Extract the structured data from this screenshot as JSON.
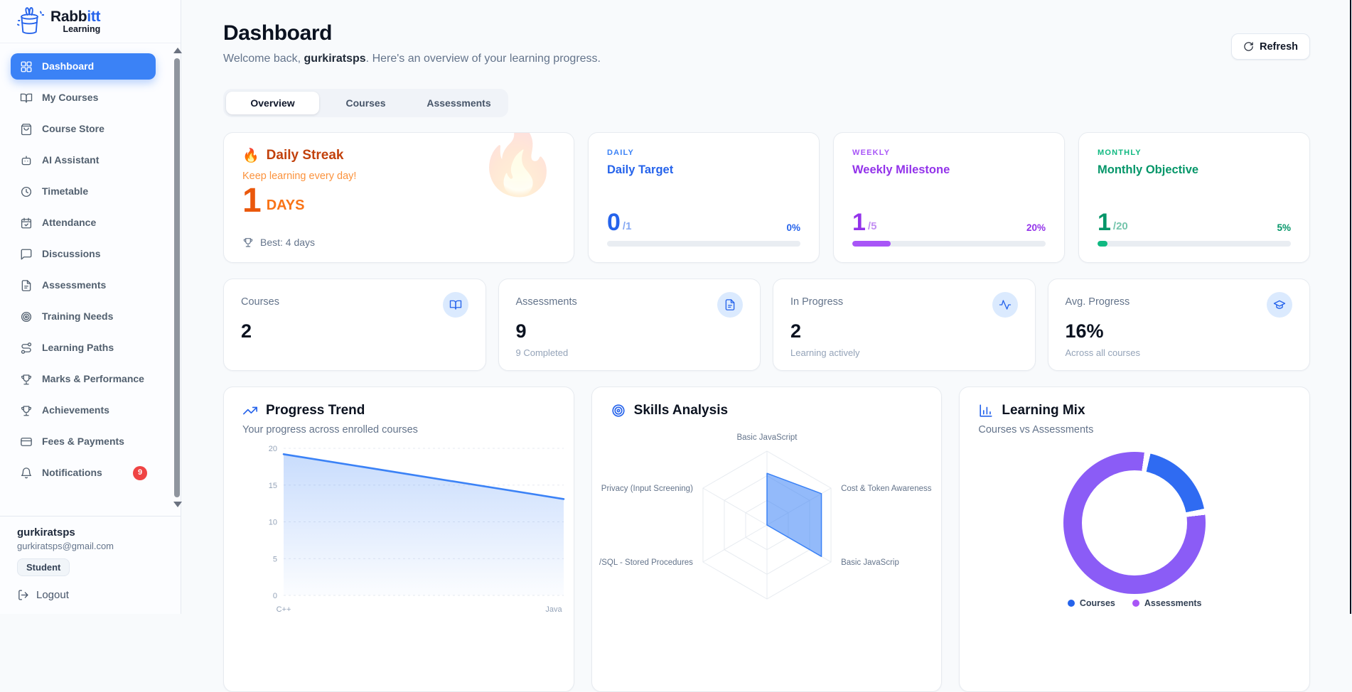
{
  "brand": {
    "name_primary": "Rabb",
    "name_accent": "itt",
    "subtitle": "Learning"
  },
  "sidebar": {
    "items": [
      {
        "label": "Dashboard",
        "icon": "grid",
        "active": true
      },
      {
        "label": "My Courses",
        "icon": "book-open",
        "active": false
      },
      {
        "label": "Course Store",
        "icon": "shopping-bag",
        "active": false
      },
      {
        "label": "AI Assistant",
        "icon": "bot",
        "active": false
      },
      {
        "label": "Timetable",
        "icon": "clock",
        "active": false
      },
      {
        "label": "Attendance",
        "icon": "calendar-check",
        "active": false
      },
      {
        "label": "Discussions",
        "icon": "message-square",
        "active": false
      },
      {
        "label": "Assessments",
        "icon": "file-text",
        "active": false
      },
      {
        "label": "Training Needs",
        "icon": "target",
        "active": false
      },
      {
        "label": "Learning Paths",
        "icon": "route",
        "active": false
      },
      {
        "label": "Marks & Performance",
        "icon": "trophy",
        "active": false
      },
      {
        "label": "Achievements",
        "icon": "trophy",
        "active": false
      },
      {
        "label": "Fees & Payments",
        "icon": "credit-card",
        "active": false
      },
      {
        "label": "Notifications",
        "icon": "bell",
        "active": false,
        "badge": "9"
      }
    ],
    "user": {
      "name": "gurkiratsps",
      "email": "gurkiratsps@gmail.com",
      "role_badge": "Student",
      "logout_label": "Logout"
    }
  },
  "header": {
    "title": "Dashboard",
    "welcome_prefix": "Welcome back, ",
    "welcome_user": "gurkiratsps",
    "welcome_suffix": ". Here's an overview of your learning progress.",
    "refresh_label": "Refresh"
  },
  "tabs": [
    {
      "label": "Overview",
      "active": true
    },
    {
      "label": "Courses",
      "active": false
    },
    {
      "label": "Assessments",
      "active": false
    }
  ],
  "streak": {
    "icon": "🔥",
    "title": "Daily Streak",
    "subtitle": "Keep learning every day!",
    "count": "1",
    "unit": "DAYS",
    "best_label": "Best: 4 days"
  },
  "goals": [
    {
      "period": "DAILY",
      "title": "Daily Target",
      "current": "0",
      "total": "/1",
      "percent": "0%",
      "progress": 0,
      "accent": "#2563eb",
      "label_color": "#3b82f6",
      "bar_color": "#3b82f6"
    },
    {
      "period": "WEEKLY",
      "title": "Weekly Milestone",
      "current": "1",
      "total": "/5",
      "percent": "20%",
      "progress": 20,
      "accent": "#9333ea",
      "label_color": "#a855f7",
      "bar_color": "#a855f7"
    },
    {
      "period": "MONTHLY",
      "title": "Monthly Objective",
      "current": "1",
      "total": "/20",
      "percent": "5%",
      "progress": 5,
      "accent": "#059669",
      "label_color": "#10b981",
      "bar_color": "#10b981"
    }
  ],
  "stats": [
    {
      "label": "Courses",
      "value": "2",
      "sub": "",
      "icon": "book-open"
    },
    {
      "label": "Assessments",
      "value": "9",
      "sub": "9 Completed",
      "icon": "file-text"
    },
    {
      "label": "In Progress",
      "value": "2",
      "sub": "Learning actively",
      "icon": "activity"
    },
    {
      "label": "Avg. Progress",
      "value": "16%",
      "sub": "Across all courses",
      "icon": "graduation-cap"
    }
  ],
  "chart_data": [
    {
      "type": "area",
      "title": "Progress Trend",
      "subtitle": "Your progress across enrolled courses",
      "x": [
        "C++",
        "Java"
      ],
      "values": [
        19.2,
        13.1
      ],
      "ylim": [
        0,
        20
      ],
      "yticks": [
        0,
        5,
        10,
        15,
        20
      ],
      "line_color": "#3b82f6",
      "grid": "dashed-horizontal",
      "legend_position": "none"
    },
    {
      "type": "radar",
      "title": "Skills Analysis",
      "axes": [
        "Basic JavaScript",
        "Cost & Token Awareness",
        "Basic JavaScrip",
        "",
        "/SQL - Stored Procedures",
        "Privacy (Input Screening)"
      ],
      "values": [
        70,
        85,
        85,
        0,
        0,
        0
      ],
      "max": 100,
      "rings": 3,
      "fill_color": "rgba(59,130,246,0.55)",
      "stroke_color": "#3b82f6"
    },
    {
      "type": "pie",
      "donut": true,
      "title": "Learning Mix",
      "subtitle": "Courses vs Assessments",
      "labels": [
        "Courses",
        "Assessments"
      ],
      "values": [
        2,
        9
      ],
      "colors": [
        "#2f6bf2",
        "#8b5cf6"
      ],
      "legend_colors": [
        "#2563eb",
        "#a855f7"
      ],
      "legend_position": "bottom"
    }
  ]
}
